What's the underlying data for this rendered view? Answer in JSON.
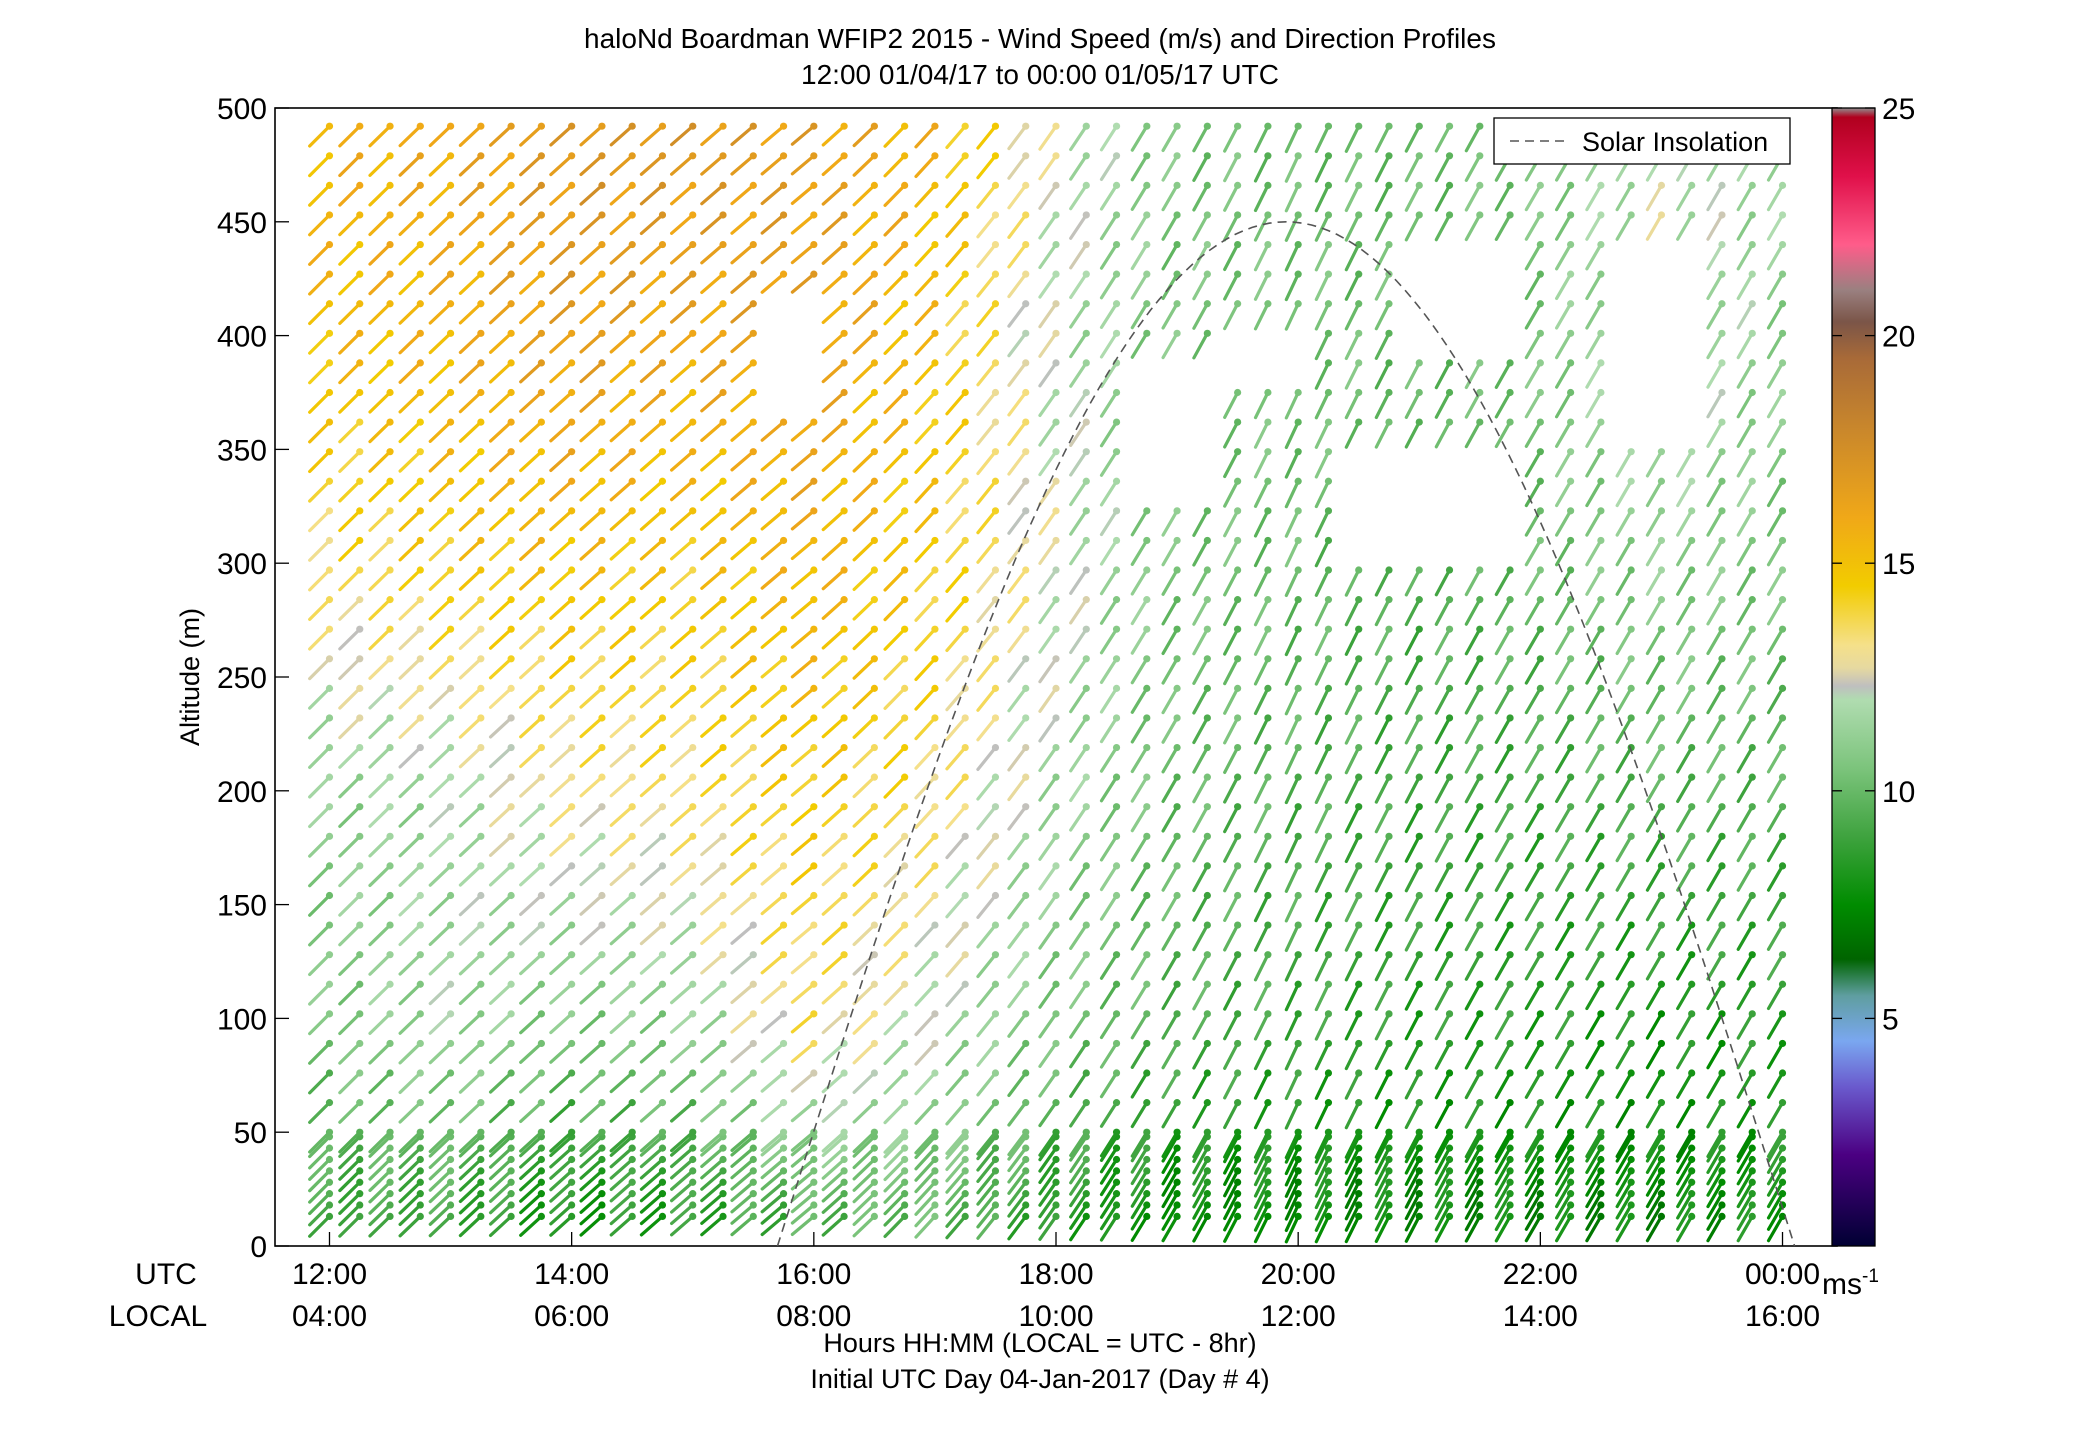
{
  "chart_data": {
    "type": "wind-barb profile",
    "title": "haloNd Boardman WFIP2 2015 - Wind Speed (m/s) and Direction Profiles",
    "subtitle": "12:00 01/04/17 to 00:00 01/05/17  UTC",
    "ylabel": "Altitude (m)",
    "xlabel": "Hours HH:MM  (LOCAL = UTC - 8hr)",
    "xlabel2": "Initial UTC Day 04-Jan-2017 (Day # 4)",
    "row_labels": {
      "utc": "UTC",
      "local": "LOCAL"
    },
    "ylim": [
      0,
      500
    ],
    "yticks": [
      0,
      50,
      100,
      150,
      200,
      250,
      300,
      350,
      400,
      450,
      500
    ],
    "xlim_hours_utc": [
      11.55,
      24.45
    ],
    "xticks": [
      {
        "hour": 12,
        "utc": "12:00",
        "local": "04:00"
      },
      {
        "hour": 14,
        "utc": "14:00",
        "local": "06:00"
      },
      {
        "hour": 16,
        "utc": "16:00",
        "local": "08:00"
      },
      {
        "hour": 18,
        "utc": "18:00",
        "local": "10:00"
      },
      {
        "hour": 20,
        "utc": "20:00",
        "local": "12:00"
      },
      {
        "hour": 22,
        "utc": "22:00",
        "local": "14:00"
      },
      {
        "hour": 24,
        "utc": "00:00",
        "local": "16:00"
      }
    ],
    "legend": {
      "label": "Solar Insolation",
      "position": "top-right",
      "line_style": "dashed",
      "color": "#555555"
    },
    "solar_insolation": {
      "start_hour_utc": 15.7,
      "peak_hour_utc": 19.9,
      "end_hour_utc": 24.1,
      "peak_altitude_m": 450
    },
    "colorbar": {
      "min": 0,
      "max": 25,
      "ticks": [
        5,
        10,
        15,
        20,
        25
      ],
      "unit_label": "ms",
      "unit_exponent": "-1",
      "stops": [
        [
          0.0,
          "#000033"
        ],
        [
          2.0,
          "#4b0082"
        ],
        [
          3.5,
          "#6a5acd"
        ],
        [
          4.5,
          "#7aa7f0"
        ],
        [
          5.5,
          "#5f9ea0"
        ],
        [
          6.3,
          "#006400"
        ],
        [
          7.5,
          "#008c00"
        ],
        [
          9.0,
          "#3fa33f"
        ],
        [
          10.5,
          "#7cc47c"
        ],
        [
          12.0,
          "#b0dcb0"
        ],
        [
          12.3,
          "#bfbfbf"
        ],
        [
          12.7,
          "#e6d9a0"
        ],
        [
          13.2,
          "#f5e08a"
        ],
        [
          14.5,
          "#f2cc00"
        ],
        [
          16.0,
          "#f0a818"
        ],
        [
          18.0,
          "#c8862c"
        ],
        [
          19.5,
          "#a86a38"
        ],
        [
          20.3,
          "#7b5548"
        ],
        [
          21.0,
          "#9a8080"
        ],
        [
          22.0,
          "#ff5c8a"
        ],
        [
          23.5,
          "#e0104a"
        ],
        [
          24.8,
          "#b0001e"
        ],
        [
          25.0,
          "#909090"
        ]
      ]
    },
    "sampling": {
      "hours_utc_start": 12.0,
      "hours_utc_end": 24.0,
      "hours_utc_step": 0.25,
      "altitudes_m_low": [
        13,
        18,
        23,
        28,
        33,
        38,
        43,
        48
      ],
      "altitudes_m_step_above_50": 13
    },
    "speed_field_knots": {
      "hours_utc": [
        12,
        13,
        14,
        15,
        16,
        17,
        18,
        19,
        20,
        21,
        22,
        23,
        24
      ],
      "altitudes_m": [
        15,
        100,
        200,
        300,
        400,
        490
      ],
      "speeds_ms": [
        [
          9.0,
          9.0,
          8.0,
          8.5,
          9.5,
          10.0,
          8.5,
          7.5,
          7.5,
          7.5,
          7.5,
          7.5,
          8.0
        ],
        [
          10.5,
          11.5,
          10.5,
          11.0,
          13.5,
          12.0,
          10.5,
          9.5,
          9.0,
          8.5,
          8.5,
          8.0,
          8.5
        ],
        [
          11.0,
          11.5,
          13.0,
          13.5,
          14.5,
          13.5,
          11.5,
          10.0,
          9.5,
          9.0,
          9.0,
          9.5,
          9.5
        ],
        [
          13.5,
          14.5,
          15.0,
          14.5,
          15.5,
          14.5,
          12.5,
          10.5,
          10.0,
          9.5,
          10.0,
          11.0,
          10.5
        ],
        [
          15.0,
          15.5,
          16.5,
          16.0,
          16.5,
          15.0,
          12.0,
          10.5,
          10.5,
          10.0,
          10.5,
          12.5,
          11.0
        ],
        [
          15.5,
          16.0,
          17.0,
          17.0,
          16.5,
          15.5,
          12.5,
          10.5,
          10.0,
          10.0,
          10.5,
          12.0,
          11.5
        ]
      ]
    },
    "direction_field_knots": {
      "hours_utc": [
        12,
        14,
        16,
        18,
        20,
        22,
        24
      ],
      "direction_deg": [
        225,
        228,
        230,
        215,
        205,
        210,
        210
      ]
    },
    "missing_regions": [
      {
        "hour_from": 15.65,
        "hour_to": 16.05,
        "alt_from": 365,
        "alt_to": 420
      },
      {
        "hour_from": 18.7,
        "hour_to": 19.4,
        "alt_from": 335,
        "alt_to": 360
      },
      {
        "hour_from": 18.7,
        "hour_to": 19.4,
        "alt_from": 360,
        "alt_to": 388
      },
      {
        "hour_from": 19.4,
        "hour_to": 20.2,
        "alt_from": 385,
        "alt_to": 410
      },
      {
        "hour_from": 20.9,
        "hour_to": 21.9,
        "alt_from": 395,
        "alt_to": 440
      },
      {
        "hour_from": 20.3,
        "hour_to": 21.9,
        "alt_from": 310,
        "alt_to": 360
      },
      {
        "hour_from": 22.6,
        "hour_to": 23.3,
        "alt_from": 350,
        "alt_to": 440
      }
    ]
  }
}
